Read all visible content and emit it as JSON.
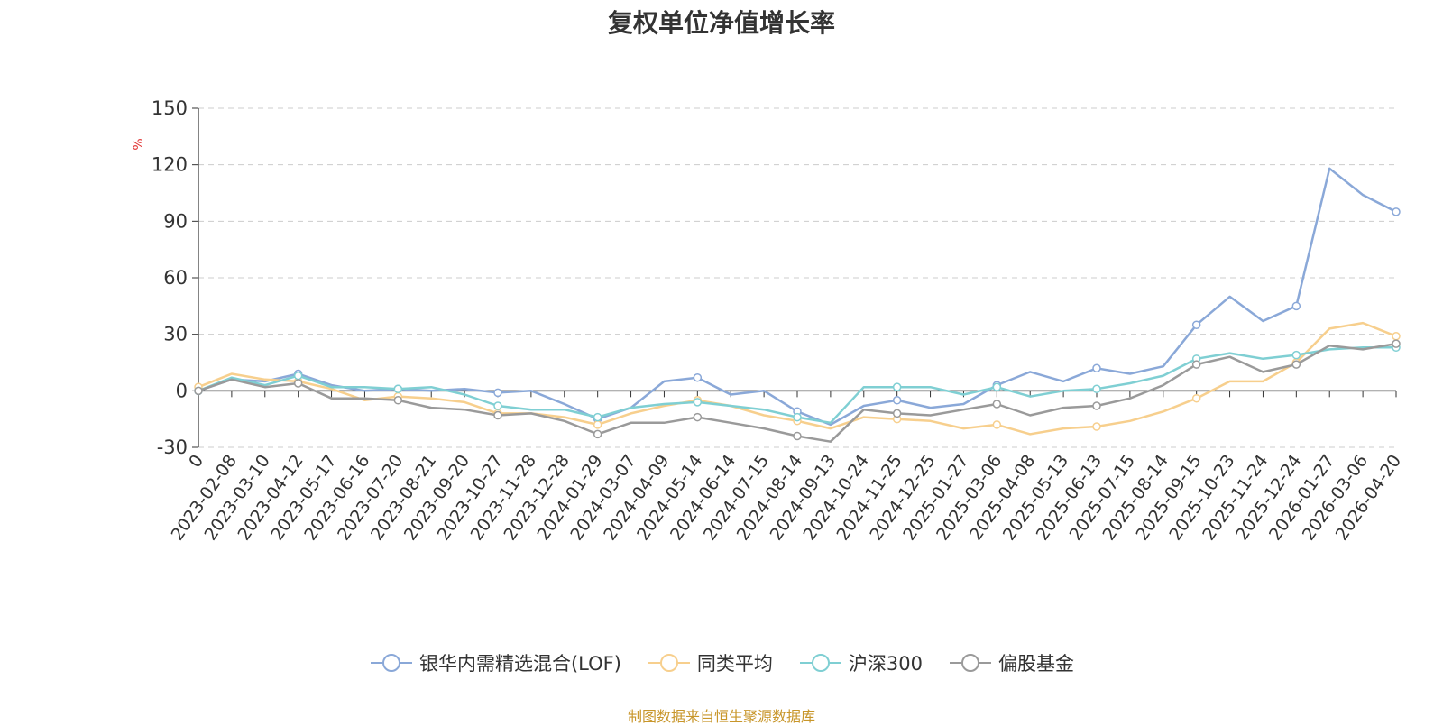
{
  "chart_data": {
    "type": "line",
    "title": "复权单位净值增长率",
    "ylabel": "%",
    "ylim": [
      -30,
      150
    ],
    "yticks": [
      -30,
      0,
      30,
      60,
      90,
      120,
      150
    ],
    "grid": true,
    "legend_position": "bottom",
    "x": [
      "0",
      "2023-02-08",
      "2023-03-10",
      "2023-04-12",
      "2023-05-17",
      "2023-06-16",
      "2023-07-20",
      "2023-08-21",
      "2023-09-20",
      "2023-10-27",
      "2023-11-28",
      "2023-12-28",
      "2024-01-29",
      "2024-03-07",
      "2024-04-09",
      "2024-05-14",
      "2024-06-14",
      "2024-07-15",
      "2024-08-14",
      "2024-09-13",
      "2024-10-24",
      "2024-11-25",
      "2024-12-25",
      "2025-01-27",
      "2025-03-06",
      "2025-04-08",
      "2025-05-13",
      "2025-06-13",
      "2025-07-15",
      "2025-08-14",
      "2025-09-15",
      "2025-10-23",
      "2025-11-24",
      "2025-12-24",
      "2026-01-27",
      "2026-03-06",
      "2026-04-20"
    ],
    "series": [
      {
        "name": "银华内需精选混合(LOF)",
        "color": "#8aa8d8",
        "values": [
          0,
          6,
          5,
          9,
          3,
          0,
          1,
          0,
          1,
          -1,
          0,
          -7,
          -15,
          -9,
          5,
          7,
          -2,
          0,
          -11,
          -18,
          -8,
          -5,
          -9,
          -7,
          3,
          10,
          5,
          12,
          9,
          13,
          35,
          50,
          37,
          45,
          118,
          104,
          95
        ]
      },
      {
        "name": "同类平均",
        "color": "#f7cf8d",
        "values": [
          2,
          9,
          6,
          5,
          1,
          -5,
          -3,
          -4,
          -6,
          -12,
          -12,
          -14,
          -18,
          -12,
          -8,
          -5,
          -8,
          -13,
          -16,
          -20,
          -14,
          -15,
          -16,
          -20,
          -18,
          -23,
          -20,
          -19,
          -16,
          -11,
          -4,
          5,
          5,
          15,
          33,
          36,
          29
        ]
      },
      {
        "name": "沪深300",
        "color": "#7fcfd3",
        "values": [
          0,
          7,
          3,
          8,
          2,
          2,
          1,
          2,
          -2,
          -8,
          -10,
          -10,
          -14,
          -9,
          -7,
          -6,
          -8,
          -10,
          -14,
          -17,
          2,
          2,
          2,
          -2,
          2,
          -3,
          0,
          1,
          4,
          8,
          17,
          20,
          17,
          19,
          22,
          23,
          23
        ]
      },
      {
        "name": "偏股基金",
        "color": "#9a9a9a",
        "values": [
          0,
          6,
          2,
          4,
          -4,
          -4,
          -5,
          -9,
          -10,
          -13,
          -12,
          -16,
          -23,
          -17,
          -17,
          -14,
          -17,
          -20,
          -24,
          -27,
          -10,
          -12,
          -13,
          -10,
          -7,
          -13,
          -9,
          -8,
          -4,
          3,
          14,
          18,
          10,
          14,
          24,
          22,
          25
        ]
      }
    ]
  },
  "source_note": "制图数据来自恒生聚源数据库",
  "colors": {
    "title": "#333333",
    "axis": "#333333",
    "grid": "#cccccc",
    "ylabel_unit": "#e03030",
    "source_note": "#c8962a"
  }
}
